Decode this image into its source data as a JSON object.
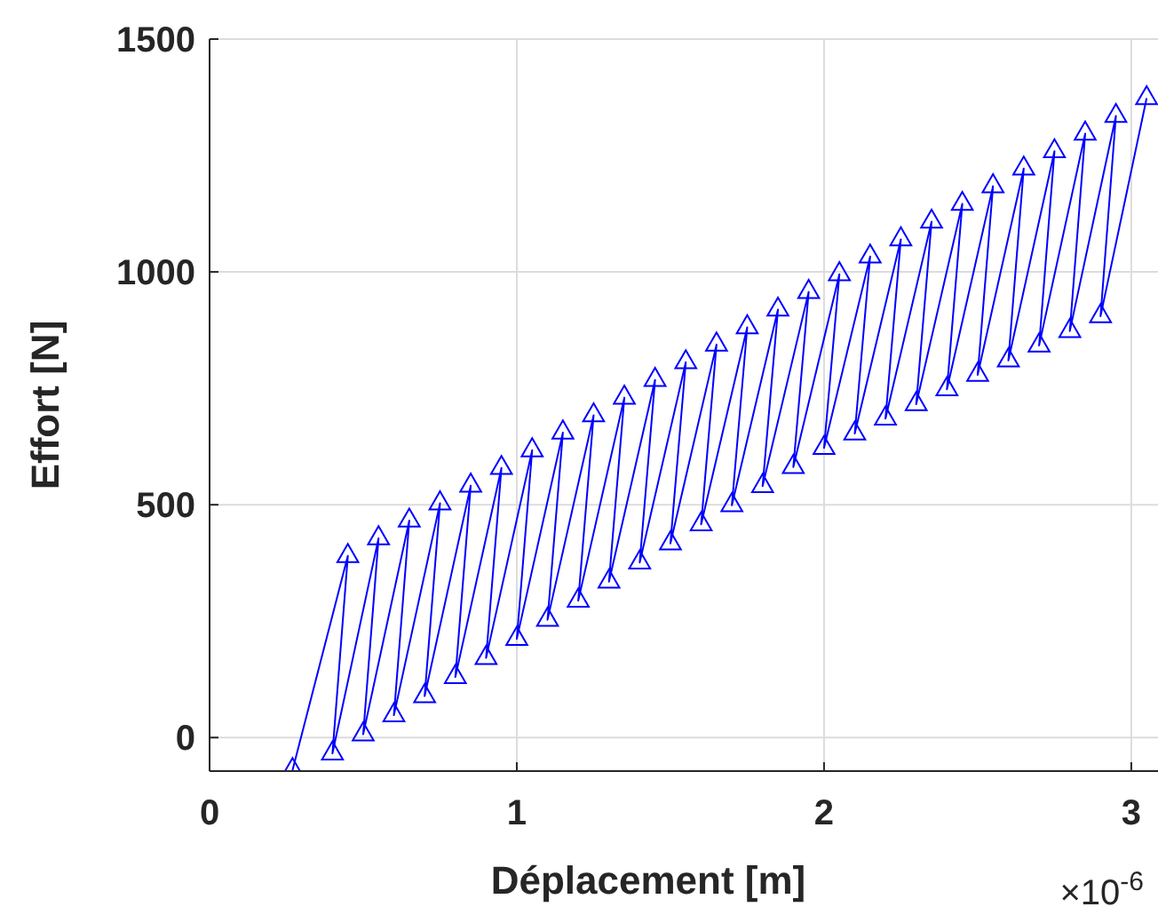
{
  "chart_data": {
    "type": "line",
    "xlabel": "Déplacement [m]",
    "ylabel": "Effort [N]",
    "annotations": [
      "×10$^{-6}$"
    ],
    "xlim": [
      0,
      3.087
    ],
    "ylim": [
      -72,
      1500
    ],
    "xticks": [
      0,
      1,
      2,
      3
    ],
    "yticks": [
      0,
      500,
      1000,
      1500
    ],
    "grid": true,
    "marker": "triangle",
    "line_style": "solid",
    "series": [
      {
        "color": "#0000ff",
        "x": [
          0.27,
          0.45,
          0.4,
          0.55,
          0.5,
          0.65,
          0.6,
          0.75,
          0.7,
          0.85,
          0.8,
          0.95,
          0.9,
          1.05,
          1.0,
          1.15,
          1.1,
          1.25,
          1.2,
          1.35,
          1.3,
          1.45,
          1.4,
          1.55,
          1.5,
          1.65,
          1.6,
          1.75,
          1.7,
          1.85,
          1.8,
          1.95,
          1.9,
          2.05,
          2.0,
          2.15,
          2.1,
          2.25,
          2.2,
          2.35,
          2.3,
          2.45,
          2.4,
          2.55,
          2.5,
          2.65,
          2.6,
          2.75,
          2.7,
          2.85,
          2.8,
          2.95,
          2.9,
          3.05
        ],
        "values": [
          -70,
          390,
          -34,
          428,
          7,
          466,
          48,
          503,
          89,
          541,
          130,
          579,
          171,
          617,
          212,
          655,
          253,
          692,
          294,
          730,
          335,
          768,
          376,
          806,
          417,
          844,
          458,
          881,
          499,
          919,
          540,
          957,
          581,
          995,
          622,
          1033,
          653,
          1070,
          685,
          1108,
          716,
          1146,
          748,
          1184,
          779,
          1222,
          810,
          1259,
          842,
          1297,
          873,
          1335,
          905,
          1373
        ]
      }
    ]
  }
}
